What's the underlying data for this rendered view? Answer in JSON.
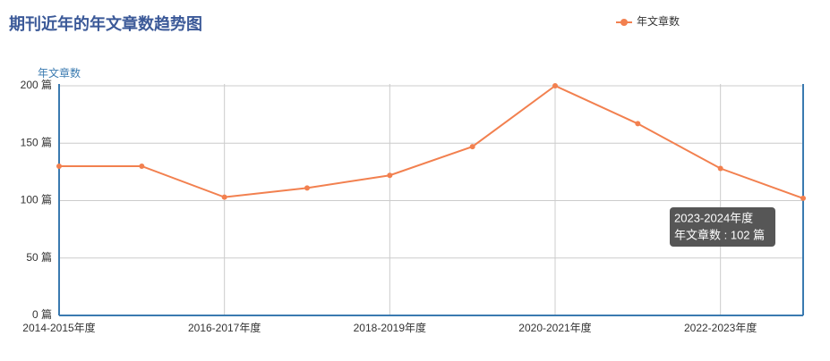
{
  "chart_data": {
    "type": "line",
    "title": "期刊近年的年文章数趋势图",
    "y_axis_label": "年文章数",
    "categories": [
      "2014-2015年度",
      null,
      "2016-2017年度",
      null,
      "2018-2019年度",
      null,
      "2020-2021年度",
      null,
      "2022-2023年度",
      null
    ],
    "series": [
      {
        "name": "年文章数",
        "color": "#f2804f",
        "values": [
          130,
          130,
          103,
          111,
          122,
          147,
          200,
          167,
          128,
          102
        ]
      }
    ],
    "ylim": [
      0,
      200
    ],
    "yticks": [
      {
        "value": 0,
        "label": "0 篇"
      },
      {
        "value": 50,
        "label": "50 篇"
      },
      {
        "value": 100,
        "label": "100 篇"
      },
      {
        "value": 150,
        "label": "150 篇"
      },
      {
        "value": 200,
        "label": "200 篇"
      }
    ],
    "grid": true,
    "legend": "top-right",
    "tooltip": {
      "lines": [
        "2023-2024年度",
        "年文章数 : 102 篇"
      ]
    }
  }
}
